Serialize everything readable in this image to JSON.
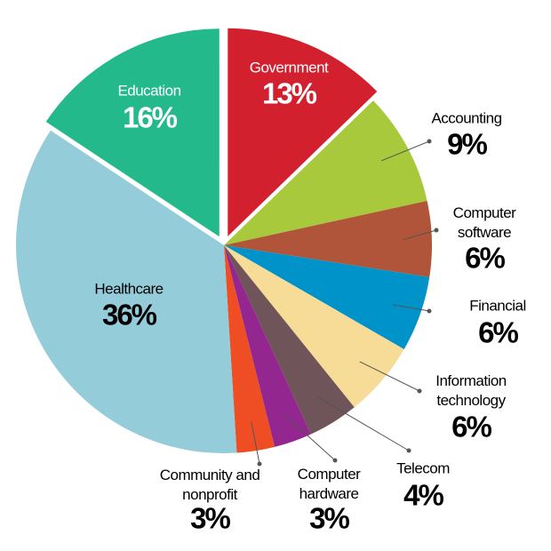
{
  "chart_data": {
    "type": "pie",
    "categories": [
      "Government",
      "Accounting",
      "Computer\nsoftware",
      "Financial",
      "Information\ntechnology",
      "Telecom",
      "Computer\nhardware",
      "Community and\nnonprofit",
      "Healthcare",
      "Education"
    ],
    "values": [
      13,
      9,
      6,
      6,
      6,
      4,
      3,
      3,
      36,
      16
    ],
    "value_labels": [
      "13%",
      "9%",
      "6%",
      "6%",
      "6%",
      "4%",
      "3%",
      "3%",
      "36%",
      "16%"
    ],
    "colors": [
      "#d2202f",
      "#a7c93b",
      "#b1553a",
      "#0093c9",
      "#f7dc98",
      "#6f5459",
      "#93278f",
      "#ef4e24",
      "#94ccda",
      "#23b98b"
    ],
    "exploded": [
      0,
      9
    ]
  }
}
